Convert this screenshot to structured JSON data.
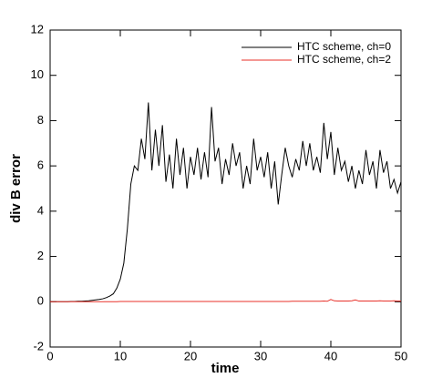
{
  "chart_data": {
    "type": "line",
    "x_label": "time",
    "y_label": "div B error",
    "x": [
      0,
      0.5,
      1,
      1.5,
      2,
      2.5,
      3,
      3.5,
      4,
      4.5,
      5,
      5.5,
      6,
      6.5,
      7,
      7.5,
      8,
      8.5,
      9,
      9.5,
      10,
      10.5,
      11,
      11.5,
      12,
      12.5,
      13,
      13.5,
      14,
      14.5,
      15,
      15.5,
      16,
      16.5,
      17,
      17.5,
      18,
      18.5,
      19,
      19.5,
      20,
      20.5,
      21,
      21.5,
      22,
      22.5,
      23,
      23.5,
      24,
      24.5,
      25,
      25.5,
      26,
      26.5,
      27,
      27.5,
      28,
      28.5,
      29,
      29.5,
      30,
      30.5,
      31,
      31.5,
      32,
      32.5,
      33,
      33.5,
      34,
      34.5,
      35,
      35.5,
      36,
      36.5,
      37,
      37.5,
      38,
      38.5,
      39,
      39.5,
      40,
      40.5,
      41,
      41.5,
      42,
      42.5,
      43,
      43.5,
      44,
      44.5,
      45,
      45.5,
      46,
      46.5,
      47,
      47.5,
      48,
      48.5,
      49,
      49.5,
      50
    ],
    "series": [
      {
        "name": "HTC scheme, ch=0",
        "color": "#000000",
        "values": [
          0,
          0,
          0,
          0,
          0,
          0,
          0.01,
          0.01,
          0.02,
          0.02,
          0.03,
          0.04,
          0.06,
          0.08,
          0.1,
          0.13,
          0.18,
          0.25,
          0.35,
          0.6,
          1.0,
          1.7,
          3.2,
          5.2,
          6.0,
          5.8,
          7.2,
          6.3,
          8.8,
          5.8,
          7.6,
          6.0,
          7.8,
          5.3,
          6.5,
          5.0,
          7.2,
          5.6,
          6.8,
          5.0,
          6.4,
          5.6,
          6.8,
          5.4,
          6.6,
          5.5,
          8.6,
          6.2,
          6.8,
          5.2,
          6.3,
          5.6,
          7.0,
          6.0,
          6.6,
          5.0,
          6.0,
          5.2,
          7.2,
          5.8,
          6.4,
          5.5,
          6.6,
          5.0,
          6.2,
          4.3,
          5.6,
          6.8,
          6.0,
          5.5,
          6.3,
          5.8,
          7.1,
          6.0,
          7.0,
          5.8,
          6.4,
          5.7,
          7.9,
          6.3,
          7.5,
          5.6,
          6.8,
          5.8,
          6.2,
          5.3,
          6.0,
          5.0,
          5.8,
          5.2,
          6.7,
          5.6,
          6.2,
          5.0,
          6.7,
          5.7,
          6.2,
          5.0,
          5.4,
          4.8,
          5.3
        ]
      },
      {
        "name": "HTC scheme, ch=2",
        "color": "#e8322a",
        "values": [
          0,
          0,
          0,
          0,
          0,
          0,
          0,
          0,
          0,
          0,
          0,
          0,
          0,
          0,
          0,
          0,
          0,
          0,
          0,
          0,
          0.01,
          0.01,
          0.01,
          0.01,
          0.01,
          0.01,
          0.01,
          0.01,
          0.01,
          0.01,
          0.01,
          0.01,
          0.01,
          0.01,
          0.01,
          0.01,
          0.01,
          0.01,
          0.01,
          0.01,
          0.01,
          0.01,
          0.01,
          0.01,
          0.01,
          0.01,
          0.01,
          0.01,
          0.01,
          0.01,
          0.01,
          0.01,
          0.01,
          0.01,
          0.01,
          0.01,
          0.01,
          0.01,
          0.01,
          0.01,
          0.01,
          0.01,
          0.01,
          0.01,
          0.01,
          0.01,
          0.01,
          0.01,
          0.01,
          0.02,
          0.02,
          0.02,
          0.02,
          0.02,
          0.02,
          0.02,
          0.02,
          0.02,
          0.03,
          0.02,
          0.1,
          0.04,
          0.03,
          0.03,
          0.03,
          0.03,
          0.04,
          0.08,
          0.03,
          0.03,
          0.03,
          0.03,
          0.03,
          0.03,
          0.04,
          0.03,
          0.03,
          0.03,
          0.04,
          0.03,
          0.03
        ]
      }
    ],
    "xlim": [
      0,
      50
    ],
    "xticks": [
      0,
      10,
      20,
      30,
      40,
      50
    ],
    "ylim": [
      -2,
      12
    ],
    "yticks": [
      -2,
      0,
      2,
      4,
      6,
      8,
      10,
      12
    ],
    "legend": "upper right"
  }
}
